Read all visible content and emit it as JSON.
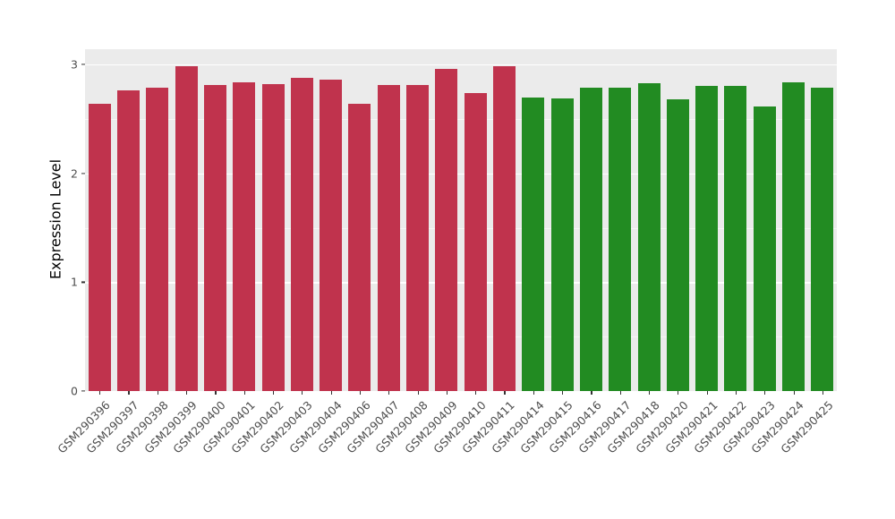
{
  "chart_data": {
    "type": "bar",
    "title": "",
    "xlabel": "",
    "ylabel": "Expression Level",
    "ylim": [
      0,
      3.14
    ],
    "yticks": [
      0,
      1,
      2,
      3
    ],
    "yticks_minor": [
      0.5,
      1.5,
      2.5
    ],
    "grid": true,
    "legend_position": "none",
    "panel_bg": "#EBEBEB",
    "grid_color": "#FFFFFF",
    "tick_label_color": "#4D4D4D",
    "categories": [
      "GSM290396",
      "GSM290397",
      "GSM290398",
      "GSM290399",
      "GSM290400",
      "GSM290401",
      "GSM290402",
      "GSM290403",
      "GSM290404",
      "GSM290406",
      "GSM290407",
      "GSM290408",
      "GSM290409",
      "GSM290410",
      "GSM290411",
      "GSM290414",
      "GSM290415",
      "GSM290416",
      "GSM290417",
      "GSM290418",
      "GSM290420",
      "GSM290421",
      "GSM290422",
      "GSM290423",
      "GSM290424",
      "GSM290425"
    ],
    "values": [
      2.64,
      2.76,
      2.79,
      2.98,
      2.81,
      2.84,
      2.82,
      2.88,
      2.86,
      2.64,
      2.81,
      2.81,
      2.96,
      2.74,
      2.98,
      2.7,
      2.69,
      2.79,
      2.79,
      2.83,
      2.68,
      2.8,
      2.8,
      2.61,
      2.84,
      2.79
    ],
    "groups": [
      "group1",
      "group1",
      "group1",
      "group1",
      "group1",
      "group1",
      "group1",
      "group1",
      "group1",
      "group1",
      "group1",
      "group1",
      "group1",
      "group1",
      "group1",
      "group2",
      "group2",
      "group2",
      "group2",
      "group2",
      "group2",
      "group2",
      "group2",
      "group2",
      "group2",
      "group2"
    ],
    "group_colors": {
      "group1": "#C0334D",
      "group2": "#228B22"
    }
  }
}
